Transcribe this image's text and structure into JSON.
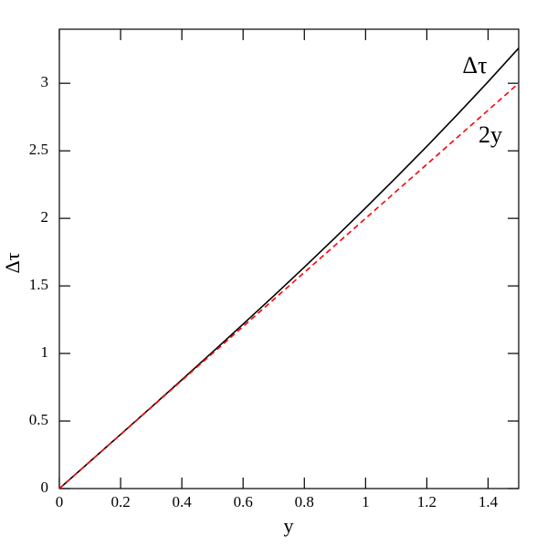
{
  "chart_data": {
    "type": "line",
    "xlabel": "y",
    "ylabel": "Δτ",
    "x": [
      0,
      0.1,
      0.2,
      0.3,
      0.4,
      0.5,
      0.6,
      0.7,
      0.8,
      0.9,
      1.0,
      1.1,
      1.2,
      1.3,
      1.4,
      1.5
    ],
    "series": [
      {
        "name": "Δτ",
        "color": "#000000",
        "dash": false,
        "values": [
          0,
          0.2,
          0.401,
          0.602,
          0.805,
          1.01,
          1.217,
          1.426,
          1.639,
          1.856,
          2.077,
          2.303,
          2.533,
          2.769,
          3.011,
          3.26
        ]
      },
      {
        "name": "2y",
        "color": "#ff0000",
        "dash": true,
        "values": [
          0,
          0.2,
          0.4,
          0.6,
          0.8,
          1.0,
          1.2,
          1.4,
          1.6,
          1.8,
          2.0,
          2.2,
          2.4,
          2.6,
          2.8,
          3.0
        ]
      }
    ],
    "xlim": [
      0,
      1.5
    ],
    "xticks": [
      0,
      0.2,
      0.4,
      0.6,
      0.8,
      1,
      1.2,
      1.4
    ],
    "ylim": [
      0,
      3.4
    ],
    "yticks": [
      0,
      0.5,
      1,
      1.5,
      2,
      2.5,
      3
    ],
    "grid": false
  }
}
